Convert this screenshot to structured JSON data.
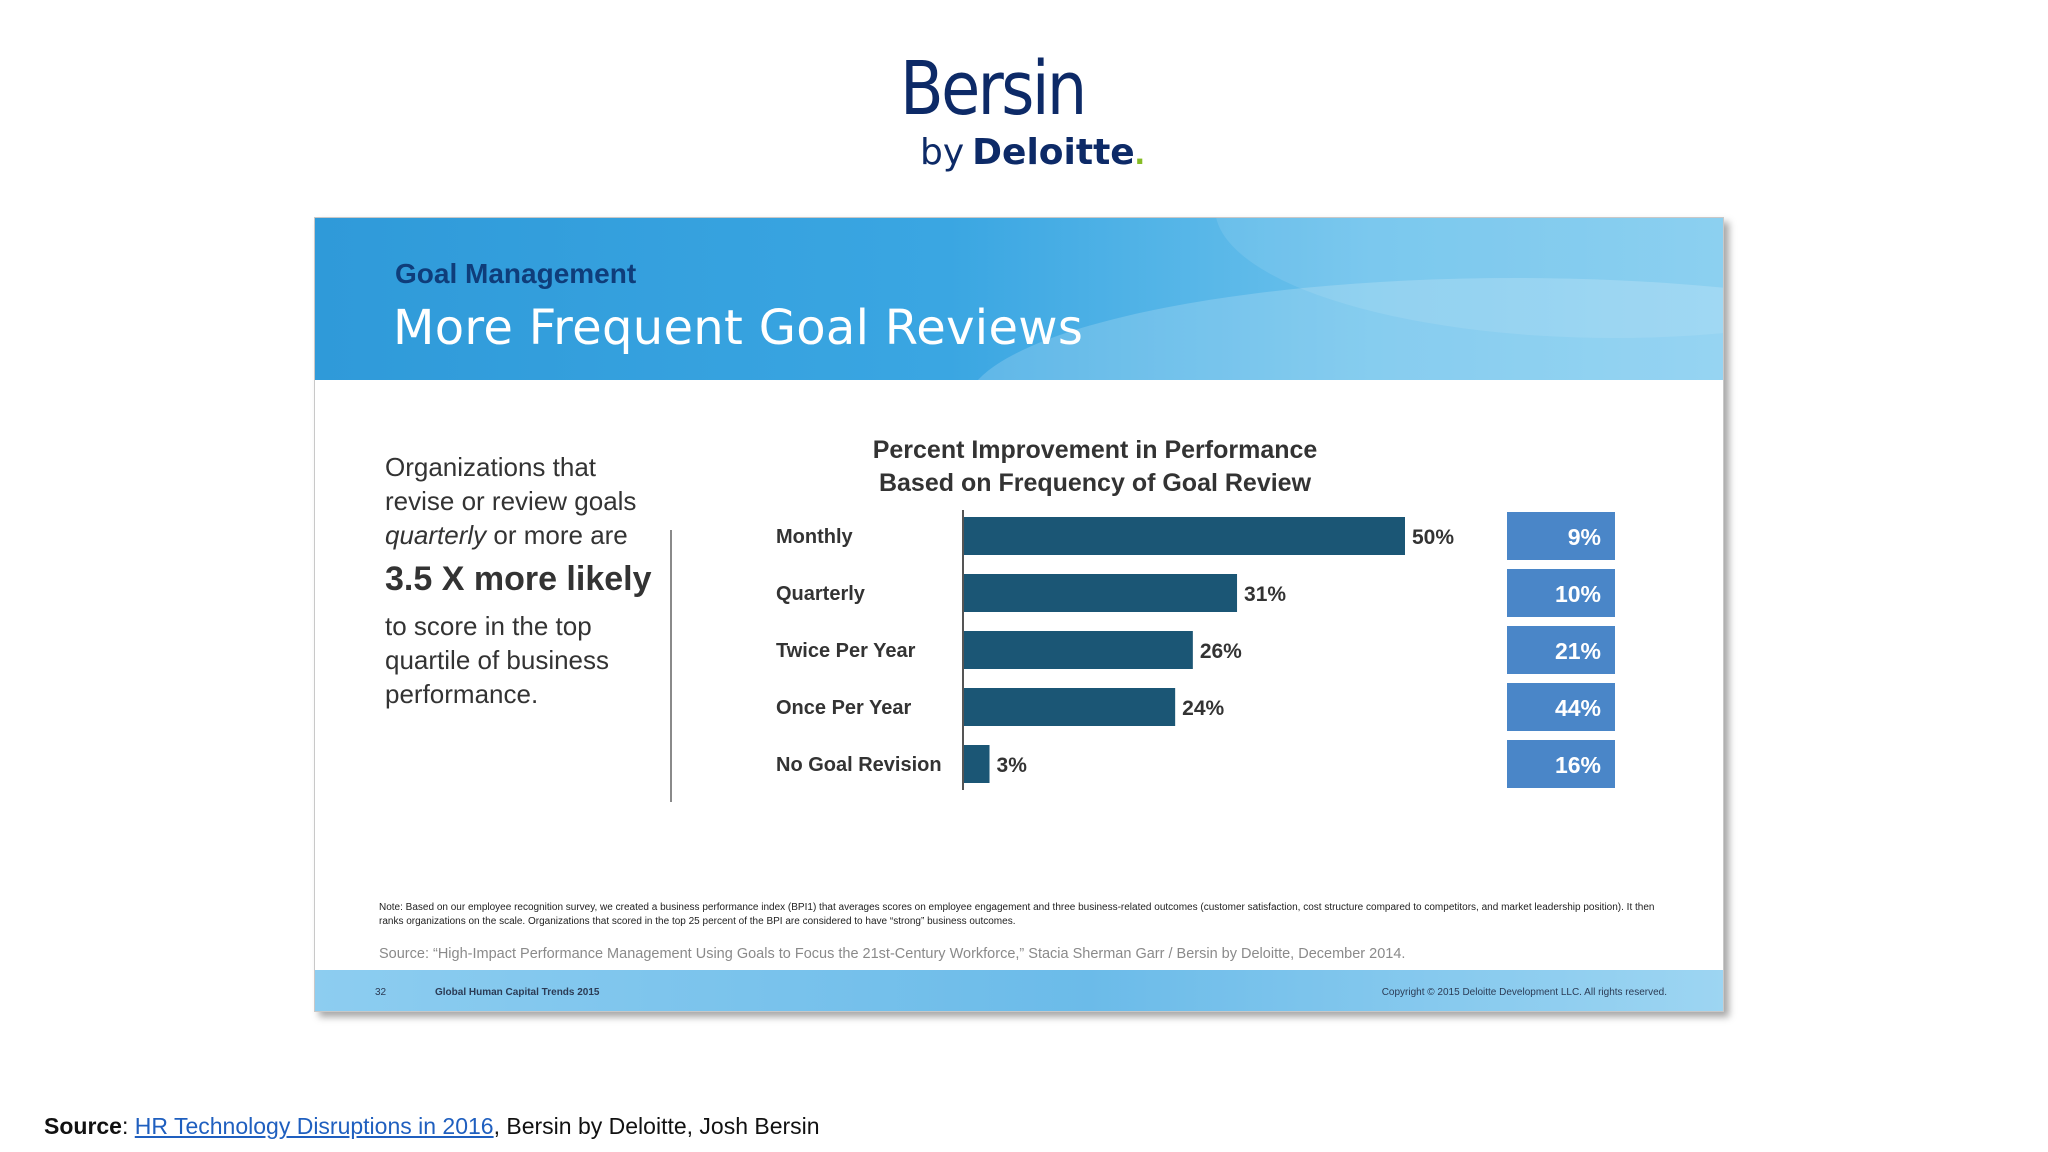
{
  "logo": {
    "main": "Bersin",
    "by": "by",
    "brand": "Deloitte",
    "dot": "."
  },
  "slide": {
    "kicker": "Goal Management",
    "title": "More Frequent Goal Reviews",
    "left": {
      "line1": "Organizations that revise or review goals",
      "emph": "quarterly",
      "line2": "or more are",
      "big": "3.5 X more likely",
      "line3": "to score in the top quartile of business performance."
    },
    "note": "Note: Based on our employee recognition survey, we created a business performance index (BPI1) that averages scores on employee engagement and three business-related outcomes (customer satisfaction, cost structure compared to competitors, and market leadership position). It then ranks organizations on the scale. Organizations that scored in the top 25 percent of the BPI are considered to have “strong” business outcomes.",
    "source": "Source:  “High-Impact Performance Management Using Goals to Focus the 21st-Century Workforce,” Stacia Sherman Garr / Bersin by Deloitte, December 2014.",
    "footer": {
      "page_number": "32",
      "title": "Global Human Capital Trends 2015",
      "copyright": "Copyright © 2015 Deloitte Development LLC. All rights reserved."
    }
  },
  "chart_data": {
    "type": "bar",
    "orientation": "horizontal",
    "title_lines": [
      "Percent Improvement in Performance",
      "Based on Frequency of Goal Review"
    ],
    "categories": [
      "Monthly",
      "Quarterly",
      "Twice Per Year",
      "Once Per Year",
      "No Goal Revision"
    ],
    "values": [
      50,
      31,
      26,
      24,
      3
    ],
    "value_labels": [
      "50%",
      "31%",
      "26%",
      "24%",
      "3%"
    ],
    "side_values": [
      9,
      10,
      21,
      44,
      16
    ],
    "side_labels": [
      "9%",
      "10%",
      "21%",
      "44%",
      "16%"
    ],
    "xlim": [
      0,
      50
    ],
    "grid": false,
    "colors": {
      "bar": "#1b5675",
      "side_box": "#4a86c8",
      "axis": "#555555"
    }
  },
  "page_source": {
    "label": "Source",
    "link_text": "HR Technology Disruptions in 2016",
    "rest": ", Bersin by Deloitte, Josh Bersin"
  }
}
